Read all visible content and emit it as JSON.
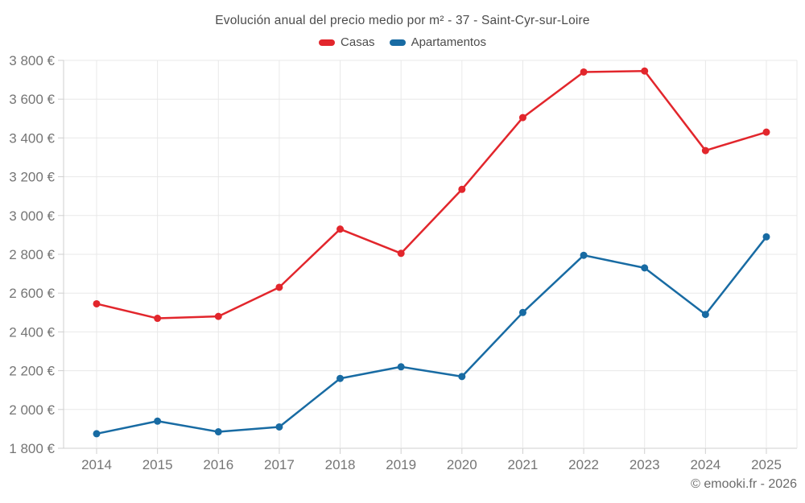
{
  "chart_data": {
    "type": "line",
    "title": "Evolución anual del precio medio por m² - 37 - Saint-Cyr-sur-Loire",
    "categories": [
      "2014",
      "2015",
      "2016",
      "2017",
      "2018",
      "2019",
      "2020",
      "2021",
      "2022",
      "2023",
      "2024",
      "2025"
    ],
    "series": [
      {
        "name": "Casas",
        "color": "#e2262c",
        "values": [
          2545,
          2470,
          2480,
          2630,
          2930,
          2805,
          3135,
          3505,
          3740,
          3745,
          3335,
          3430
        ]
      },
      {
        "name": "Apartamentos",
        "color": "#186ba3",
        "values": [
          1875,
          1940,
          1885,
          1910,
          2160,
          2220,
          2170,
          2500,
          2795,
          2730,
          2490,
          2890
        ]
      }
    ],
    "xlabel": "",
    "ylabel": "",
    "ylim": [
      1800,
      3800
    ],
    "ytick_step": 200,
    "y_suffix": " €",
    "grid": true,
    "legend_position": "top"
  },
  "appearance": {
    "grid_color": "#e8e8e8",
    "axis_color": "#cfcfcf",
    "tick_label_color": "#757575",
    "title_color": "#4c4c4c",
    "background": "#ffffff"
  },
  "footer": {
    "credit": "© emooki.fr - 2026"
  }
}
